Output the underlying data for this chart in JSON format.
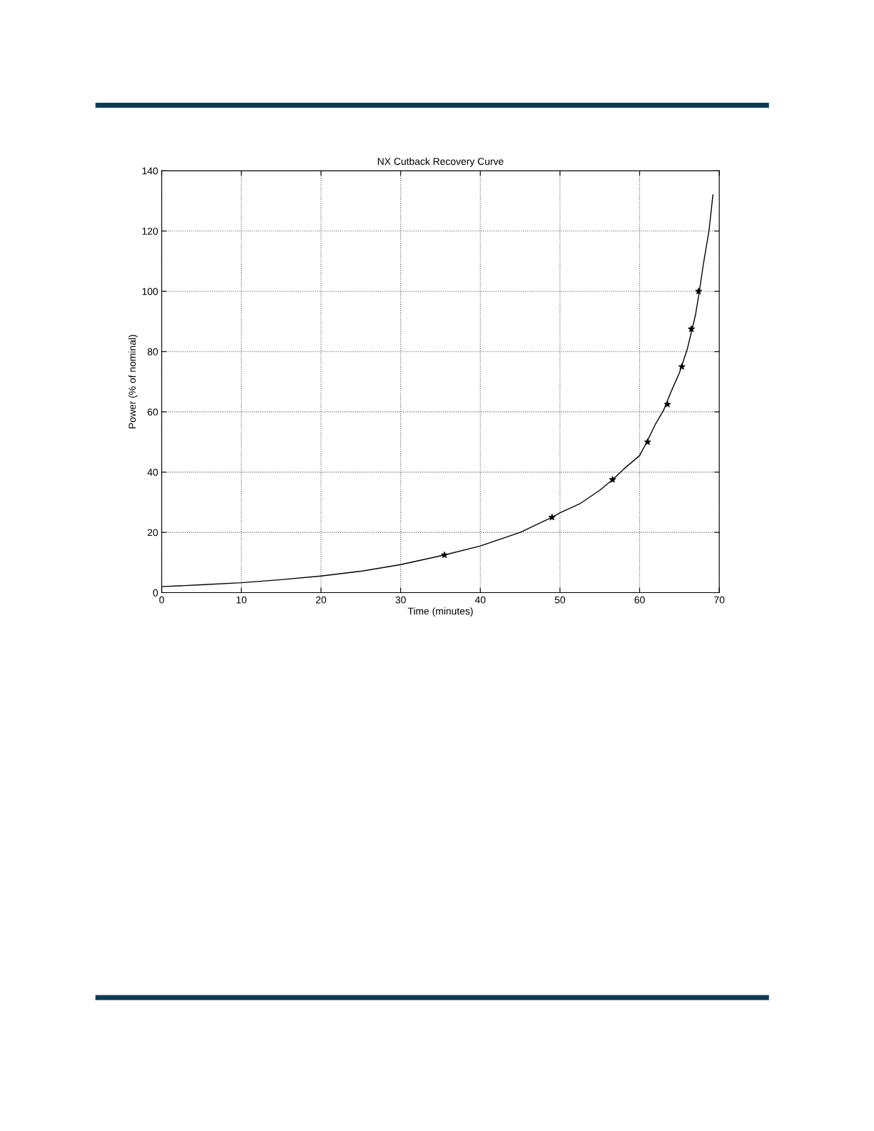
{
  "chart_data": {
    "type": "line",
    "title": "NX Cutback Recovery Curve",
    "xlabel": "Time (minutes)",
    "ylabel": "Power (% of nominal)",
    "xlim": [
      0,
      70
    ],
    "xticks": [
      0,
      10,
      20,
      30,
      40,
      50,
      60,
      70
    ],
    "ylim": [
      0,
      140
    ],
    "yticks": [
      0,
      20,
      40,
      60,
      80,
      100,
      120,
      140
    ],
    "grid": true,
    "series": [
      {
        "color": "#000000",
        "marker": "none",
        "line_style": "solid",
        "x": [
          0,
          5,
          10,
          15,
          20,
          25,
          30,
          35.5,
          40,
          45,
          49,
          50,
          52.5,
          55,
          56.6,
          58,
          60,
          61,
          62,
          63,
          64,
          65,
          66,
          67,
          67.5,
          68,
          68.7,
          69.2
        ],
        "values": [
          2,
          2.6,
          3.3,
          4.3,
          5.5,
          7.1,
          9.3,
          12.5,
          15.5,
          20,
          25,
          26.5,
          29.5,
          34,
          37.5,
          41,
          45.5,
          50.5,
          56,
          60.5,
          67,
          73,
          81,
          92,
          100,
          109,
          120,
          132
        ]
      },
      {
        "type": "scatter",
        "color": "#000000",
        "marker": "star",
        "x": [
          35.5,
          49,
          56.6,
          61,
          63.5,
          65.3,
          66.5,
          67.4
        ],
        "values": [
          12.5,
          25,
          37.5,
          50,
          62.5,
          75,
          87.5,
          100
        ]
      }
    ]
  }
}
